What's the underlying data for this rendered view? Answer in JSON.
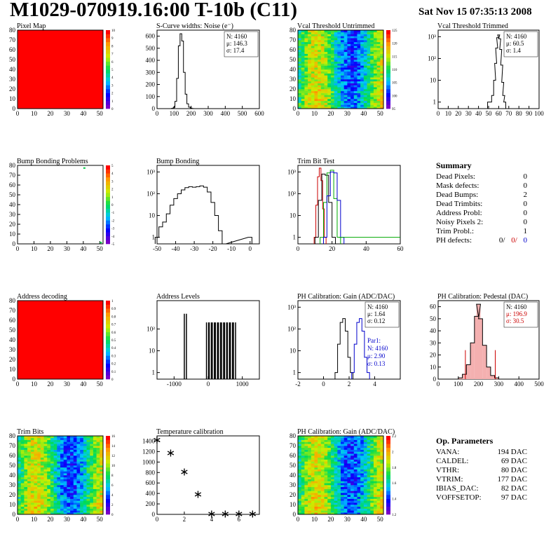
{
  "header": {
    "title": "M1029-070919.16:00 T-10b (C11)",
    "date": "Sat Nov 15 07:35:13 2008"
  },
  "colors": {
    "red_fill": "#ff0000",
    "blue_fit": "#0000cc",
    "green_hist": "#00aa00",
    "red_hist": "#cc0000"
  },
  "summary": {
    "title": "Summary",
    "rows": [
      {
        "label": "Dead Pixels:",
        "value": "0"
      },
      {
        "label": "Mask defects:",
        "value": "0"
      },
      {
        "label": "Dead Bumps:",
        "value": "2"
      },
      {
        "label": "Dead Trimbits:",
        "value": "0"
      },
      {
        "label": "Address Probl:",
        "value": "0"
      },
      {
        "label": "Noisy Pixels 2:",
        "value": "0"
      },
      {
        "label": "Trim Probl.:",
        "value": "1"
      }
    ],
    "ph_label": "PH defects:",
    "ph_values": [
      "0/",
      "0/",
      "0"
    ]
  },
  "op_params": {
    "title": "Op. Parameters",
    "rows": [
      {
        "label": "VANA:",
        "value": "194 DAC"
      },
      {
        "label": "CALDEL:",
        "value": "69 DAC"
      },
      {
        "label": "VTHR:",
        "value": "80 DAC"
      },
      {
        "label": "VTRIM:",
        "value": "177 DAC"
      },
      {
        "label": "IBIAS_DAC:",
        "value": "82 DAC"
      },
      {
        "label": "VOFFSETOP:",
        "value": "97 DAC"
      }
    ]
  },
  "chart_data": [
    {
      "id": "pixel-map",
      "type": "heatmap",
      "title": "Pixel Map",
      "xlim": [
        0,
        52
      ],
      "ylim": [
        0,
        80
      ],
      "xticks": [
        0,
        10,
        20,
        30,
        40,
        50
      ],
      "yticks": [
        0,
        10,
        20,
        30,
        40,
        50,
        60,
        70,
        80
      ],
      "fill": "uniform-red",
      "colorbar": [
        "0",
        "1",
        "2",
        "3",
        "4",
        "5",
        "6",
        "7",
        "8",
        "9",
        "10"
      ]
    },
    {
      "id": "noise",
      "type": "histogram",
      "title": "S-Curve widths: Noise (e⁻)",
      "xlim": [
        0,
        600
      ],
      "ylim": [
        0,
        650
      ],
      "xticks": [
        0,
        100,
        200,
        300,
        400,
        500,
        600
      ],
      "yticks": [
        0,
        100,
        200,
        300,
        400,
        500,
        600
      ],
      "stats": [
        "N: 4160",
        "μ: 146.3",
        "σ: 17.4"
      ],
      "x": [
        90,
        100,
        110,
        120,
        130,
        140,
        150,
        160,
        170,
        180,
        190,
        200,
        210
      ],
      "values": [
        2,
        10,
        60,
        250,
        520,
        620,
        560,
        300,
        120,
        40,
        12,
        4,
        1
      ]
    },
    {
      "id": "vcal-untrimmed",
      "type": "heatmap",
      "title": "Vcal Threshold Untrimmed",
      "xlim": [
        0,
        52
      ],
      "ylim": [
        0,
        80
      ],
      "xticks": [
        0,
        10,
        20,
        30,
        40,
        50
      ],
      "yticks": [
        0,
        10,
        20,
        30,
        40,
        50,
        60,
        70,
        80
      ],
      "fill": "noise",
      "colorbar": [
        "95",
        "100",
        "105",
        "110",
        "115",
        "120",
        "125"
      ]
    },
    {
      "id": "vcal-trimmed",
      "type": "histogram",
      "title": "Vcal Threshold Trimmed",
      "log": true,
      "xlim": [
        0,
        100
      ],
      "ylim": [
        0.5,
        2000
      ],
      "xticks": [
        0,
        10,
        20,
        30,
        40,
        50,
        60,
        70,
        80,
        90,
        100
      ],
      "ytick_labels": [
        "1",
        "10",
        "10²",
        "10³"
      ],
      "stats": [
        "N: 4160",
        "μ: 60.5",
        "σ: 1.4"
      ],
      "x": [
        50,
        52,
        54,
        56,
        57,
        58,
        59,
        60,
        61,
        62,
        63,
        64,
        65,
        66
      ],
      "values": [
        1,
        1,
        2,
        10,
        60,
        300,
        900,
        1200,
        800,
        260,
        50,
        8,
        2,
        1
      ]
    },
    {
      "id": "bump-map",
      "type": "heatmap",
      "title": "Bump Bonding Problems",
      "xlim": [
        0,
        52
      ],
      "ylim": [
        0,
        80
      ],
      "xticks": [
        0,
        10,
        20,
        30,
        40,
        50
      ],
      "yticks": [
        0,
        10,
        20,
        30,
        40,
        50,
        60,
        70,
        80
      ],
      "fill": "sparse",
      "points": [
        [
          40,
          78
        ],
        [
          50,
          2
        ]
      ],
      "colorbar": [
        "-5",
        "-4",
        "-3",
        "-2",
        "-1",
        "0",
        "1",
        "2",
        "3",
        "4",
        "5"
      ]
    },
    {
      "id": "bump-bonding",
      "type": "histogram",
      "title": "Bump Bonding",
      "log": true,
      "xlim": [
        -50,
        5
      ],
      "ylim": [
        0.5,
        2000
      ],
      "xticks": [
        -50,
        -40,
        -30,
        -20,
        -10,
        0
      ],
      "ytick_labels": [
        "1",
        "10",
        "10²",
        "10³"
      ],
      "x": [
        -50,
        -48,
        -46,
        -44,
        -42,
        -40,
        -38,
        -36,
        -34,
        -32,
        -30,
        -28,
        -26,
        -24,
        -22,
        -20,
        -18,
        -16,
        -14,
        0
      ],
      "values": [
        1,
        3,
        5,
        12,
        30,
        60,
        100,
        150,
        190,
        210,
        200,
        210,
        230,
        200,
        120,
        40,
        10,
        2,
        0,
        1
      ]
    },
    {
      "id": "trim-bit",
      "type": "histogram",
      "title": "Trim Bit Test",
      "log": true,
      "xlim": [
        0,
        60
      ],
      "ylim": [
        0.5,
        2000
      ],
      "xticks": [
        0,
        20,
        40,
        60
      ],
      "ytick_labels": [
        "1",
        "10",
        "10²",
        "10³"
      ],
      "series": [
        {
          "name": "",
          "color": "#cc0000",
          "x": [
            10,
            11,
            12,
            13,
            14,
            15,
            16
          ],
          "values": [
            1,
            30,
            600,
            1500,
            400,
            20,
            1
          ]
        },
        {
          "name": "",
          "color": "#000000",
          "x": [
            11,
            13,
            15,
            17,
            19,
            21
          ],
          "values": [
            1,
            50,
            800,
            700,
            40,
            1
          ]
        },
        {
          "name": "",
          "color": "#00aa00",
          "x": [
            14,
            16,
            18,
            20,
            22,
            24
          ],
          "values": [
            1,
            40,
            900,
            1200,
            60,
            1
          ]
        },
        {
          "name": "",
          "color": "#0000cc",
          "x": [
            16,
            18,
            20,
            22,
            24,
            26
          ],
          "values": [
            1,
            80,
            1000,
            900,
            50,
            1
          ]
        }
      ]
    },
    {
      "id": "addr-decoding",
      "type": "heatmap",
      "title": "Address decoding",
      "xlim": [
        0,
        52
      ],
      "ylim": [
        0,
        80
      ],
      "xticks": [
        0,
        10,
        20,
        30,
        40,
        50
      ],
      "yticks": [
        0,
        10,
        20,
        30,
        40,
        50,
        60,
        70,
        80
      ],
      "fill": "uniform-red",
      "colorbar": [
        "0",
        "0.1",
        "0.2",
        "0.3",
        "0.4",
        "0.5",
        "0.6",
        "0.7",
        "0.8",
        "0.9",
        "1"
      ]
    },
    {
      "id": "addr-levels",
      "type": "histogram",
      "title": "Address Levels",
      "log": true,
      "xlim": [
        -1500,
        1500
      ],
      "ylim": [
        0.5,
        2000
      ],
      "xticks": [
        -1000,
        0,
        1000
      ],
      "ytick_labels": [
        "1",
        "10",
        "10²"
      ],
      "x": [
        -700,
        -50,
        30,
        120,
        210,
        300,
        390,
        480,
        560,
        650,
        740
      ],
      "values": [
        500,
        200,
        200,
        200,
        200,
        200,
        200,
        200,
        200,
        200,
        200
      ]
    },
    {
      "id": "ph-gain",
      "type": "histogram",
      "title": "PH Calibration: Gain (ADC/DAC)",
      "log": true,
      "xlim": [
        -2,
        6
      ],
      "ylim": [
        0.5,
        2000
      ],
      "xticks": [
        -2,
        0,
        2,
        4
      ],
      "ytick_labels": [
        "1",
        "10",
        "10²",
        "10³"
      ],
      "stats": [
        "N: 4160",
        "μ: 1.64",
        "σ: 0.12"
      ],
      "fit_stats": [
        "Par1:",
        "N: 4160",
        "μ: 2.90",
        "σ: 0.13"
      ],
      "series": [
        {
          "name": "",
          "color": "#000000",
          "x": [
            1.0,
            1.2,
            1.4,
            1.6,
            1.8,
            2.0,
            2.2
          ],
          "values": [
            1,
            20,
            200,
            300,
            80,
            5,
            1
          ]
        },
        {
          "name": "",
          "color": "#0000cc",
          "x": [
            2.3,
            2.5,
            2.7,
            2.9,
            3.1,
            3.3,
            3.5
          ],
          "values": [
            1,
            20,
            200,
            300,
            80,
            5,
            1
          ]
        }
      ]
    },
    {
      "id": "ph-pedestal",
      "type": "histogram",
      "title": "PH Calibration: Pedestal (DAC)",
      "xlim": [
        0,
        500
      ],
      "ylim": [
        0,
        65
      ],
      "xticks": [
        0,
        100,
        200,
        300,
        400,
        500
      ],
      "yticks": [
        0,
        10,
        20,
        30,
        40,
        50,
        60
      ],
      "stats": [
        "N: 4160",
        "μ: 196.9",
        "σ: 30.5"
      ],
      "x": [
        110,
        130,
        150,
        170,
        190,
        200,
        210,
        230,
        250,
        270,
        290
      ],
      "values": [
        1,
        4,
        12,
        30,
        52,
        62,
        50,
        28,
        10,
        3,
        1
      ],
      "cut_lines": [
        135,
        283
      ]
    },
    {
      "id": "trim-bits-map",
      "type": "heatmap",
      "title": "Trim Bits",
      "xlim": [
        0,
        52
      ],
      "ylim": [
        0,
        80
      ],
      "xticks": [
        0,
        10,
        20,
        30,
        40,
        50
      ],
      "yticks": [
        0,
        10,
        20,
        30,
        40,
        50,
        60,
        70,
        80
      ],
      "fill": "noise",
      "colorbar": [
        "0",
        "2",
        "4",
        "6",
        "8",
        "10",
        "12",
        "14",
        "16"
      ]
    },
    {
      "id": "temperature",
      "type": "scatter",
      "title": "Temperature calibration",
      "xlim": [
        0,
        7.5
      ],
      "ylim": [
        0,
        1500
      ],
      "xticks": [
        0,
        2,
        4,
        6
      ],
      "yticks": [
        0,
        200,
        400,
        600,
        800,
        1000,
        1200,
        1400
      ],
      "x": [
        0,
        1,
        2,
        3,
        4,
        5,
        6,
        7
      ],
      "values": [
        1420,
        1170,
        810,
        380,
        10,
        10,
        10,
        10
      ]
    },
    {
      "id": "ph-gain-map",
      "type": "heatmap",
      "title": "PH Calibration: Gain (ADC/DAC)",
      "xlim": [
        0,
        52
      ],
      "ylim": [
        0,
        80
      ],
      "xticks": [
        0,
        10,
        20,
        30,
        40,
        50
      ],
      "yticks": [
        0,
        10,
        20,
        30,
        40,
        50,
        60,
        70,
        80
      ],
      "fill": "noise",
      "colorbar": [
        "1.2",
        "1.4",
        "1.6",
        "1.8",
        "2",
        "2.2"
      ]
    }
  ]
}
